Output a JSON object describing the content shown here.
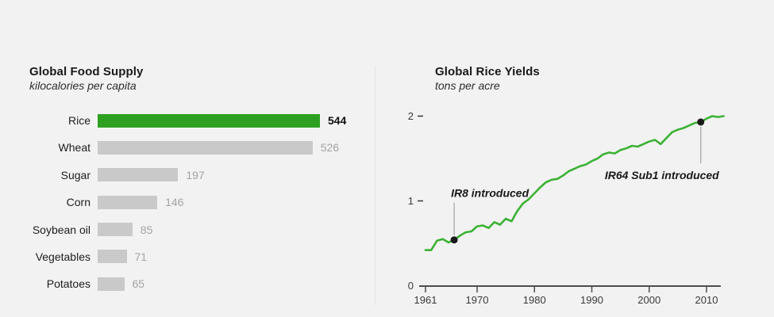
{
  "page": {
    "background_color": "#f2f2f2"
  },
  "chart_data": [
    {
      "type": "bar",
      "orientation": "horizontal",
      "title": "Global Food Supply",
      "subtitle": "kilocalories per capita",
      "categories": [
        "Rice",
        "Wheat",
        "Sugar",
        "Corn",
        "Soybean oil",
        "Vegetables",
        "Potatoes"
      ],
      "values": [
        544,
        526,
        197,
        146,
        85,
        71,
        65
      ],
      "xlim": [
        0,
        560
      ],
      "highlight_category": "Rice",
      "highlight_color": "#2da11f",
      "bar_color": "#c9c9c9",
      "value_labels_shown": true,
      "grid": false
    },
    {
      "type": "line",
      "title": "Global Rice Yields",
      "subtitle": "tons per acre",
      "x": [
        1961,
        1962,
        1963,
        1964,
        1965,
        1966,
        1967,
        1968,
        1969,
        1970,
        1971,
        1972,
        1973,
        1974,
        1975,
        1976,
        1977,
        1978,
        1979,
        1980,
        1981,
        1982,
        1983,
        1984,
        1985,
        1986,
        1987,
        1988,
        1989,
        1990,
        1991,
        1992,
        1993,
        1994,
        1995,
        1996,
        1997,
        1998,
        1999,
        2000,
        2001,
        2002,
        2003,
        2004,
        2005,
        2006,
        2007,
        2008,
        2009,
        2010,
        2011,
        2012,
        2013
      ],
      "y": [
        0.42,
        0.42,
        0.53,
        0.55,
        0.51,
        0.54,
        0.59,
        0.63,
        0.64,
        0.7,
        0.71,
        0.68,
        0.75,
        0.72,
        0.79,
        0.76,
        0.88,
        0.97,
        1.02,
        1.09,
        1.16,
        1.22,
        1.25,
        1.26,
        1.3,
        1.35,
        1.38,
        1.41,
        1.43,
        1.47,
        1.5,
        1.55,
        1.57,
        1.56,
        1.6,
        1.62,
        1.65,
        1.64,
        1.67,
        1.7,
        1.72,
        1.67,
        1.74,
        1.81,
        1.84,
        1.86,
        1.89,
        1.92,
        1.93,
        1.97,
        2.0,
        1.99,
        2.0
      ],
      "line_color": "#3cb234",
      "ylim": [
        0,
        2.2
      ],
      "yticks": [
        0,
        1,
        2
      ],
      "xticks": [
        1961,
        1970,
        1980,
        1990,
        2000,
        2010
      ],
      "grid": false,
      "annotations": [
        {
          "label": "IR8 introduced",
          "year": 1966,
          "value": 0.54,
          "text_position": "above"
        },
        {
          "label": "IR64 Sub1 introduced",
          "year": 2009,
          "value": 1.93,
          "text_position": "below"
        }
      ],
      "axis_color": "#4d4d4d",
      "marker_color": "#1a1a1a"
    }
  ]
}
